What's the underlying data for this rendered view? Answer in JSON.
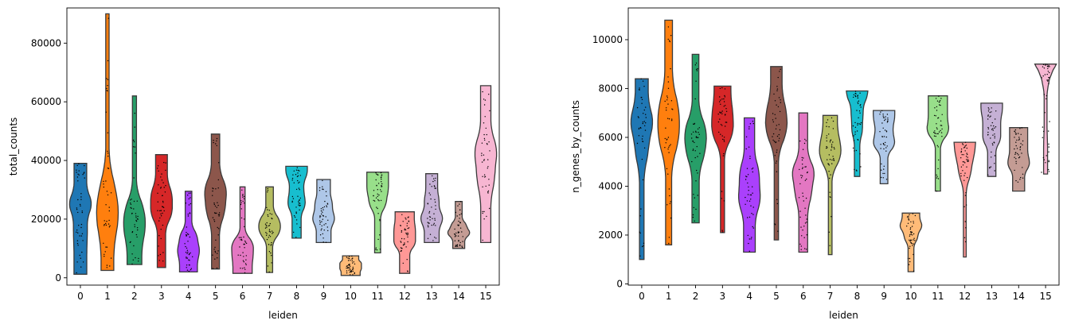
{
  "chart_data": [
    {
      "type": "violin",
      "xlabel": "leiden",
      "ylabel": "total_counts",
      "categories": [
        "0",
        "1",
        "2",
        "3",
        "4",
        "5",
        "6",
        "7",
        "8",
        "9",
        "10",
        "11",
        "12",
        "13",
        "14",
        "15"
      ],
      "ylim": [
        -2500,
        92000
      ],
      "yticks": [
        0,
        20000,
        40000,
        60000,
        80000
      ],
      "grid": false,
      "series": [
        {
          "category": "0",
          "min": 1200,
          "q1": 12000,
          "median": 22000,
          "q3": 28000,
          "max": 39000
        },
        {
          "category": "1",
          "min": 2500,
          "q1": 17000,
          "median": 24000,
          "q3": 34000,
          "max": 90000
        },
        {
          "category": "2",
          "min": 4500,
          "q1": 14000,
          "median": 20000,
          "q3": 27000,
          "max": 62000
        },
        {
          "category": "3",
          "min": 3500,
          "q1": 19000,
          "median": 25000,
          "q3": 31000,
          "max": 42000
        },
        {
          "category": "4",
          "min": 2000,
          "q1": 7000,
          "median": 11000,
          "q3": 16000,
          "max": 29500
        },
        {
          "category": "5",
          "min": 3000,
          "q1": 20000,
          "median": 27000,
          "q3": 33000,
          "max": 49000
        },
        {
          "category": "6",
          "min": 1500,
          "q1": 6000,
          "median": 10000,
          "q3": 14000,
          "max": 31000
        },
        {
          "category": "7",
          "min": 1800,
          "q1": 14000,
          "median": 17500,
          "q3": 21000,
          "max": 31000
        },
        {
          "category": "8",
          "min": 13500,
          "q1": 23000,
          "median": 28000,
          "q3": 34000,
          "max": 38000
        },
        {
          "category": "9",
          "min": 12000,
          "q1": 18000,
          "median": 22000,
          "q3": 27000,
          "max": 33500
        },
        {
          "category": "10",
          "min": 800,
          "q1": 2500,
          "median": 4000,
          "q3": 5500,
          "max": 7500
        },
        {
          "category": "11",
          "min": 8500,
          "q1": 23000,
          "median": 28000,
          "q3": 32000,
          "max": 36000
        },
        {
          "category": "12",
          "min": 1500,
          "q1": 10000,
          "median": 14000,
          "q3": 18000,
          "max": 22500
        },
        {
          "category": "13",
          "min": 12000,
          "q1": 18000,
          "median": 22000,
          "q3": 28000,
          "max": 35500
        },
        {
          "category": "14",
          "min": 10000,
          "q1": 14000,
          "median": 16000,
          "q3": 19000,
          "max": 26000
        },
        {
          "category": "15",
          "min": 12000,
          "q1": 30000,
          "median": 40000,
          "q3": 48000,
          "max": 65500
        }
      ]
    },
    {
      "type": "violin",
      "xlabel": "leiden",
      "ylabel": "n_genes_by_counts",
      "categories": [
        "0",
        "1",
        "2",
        "3",
        "4",
        "5",
        "6",
        "7",
        "8",
        "9",
        "10",
        "11",
        "12",
        "13",
        "14",
        "15"
      ],
      "ylim": [
        -50,
        11300
      ],
      "yticks": [
        0,
        2000,
        4000,
        6000,
        8000,
        10000
      ],
      "grid": false,
      "series": [
        {
          "category": "0",
          "min": 1000,
          "q1": 5000,
          "median": 6300,
          "q3": 7000,
          "max": 8400
        },
        {
          "category": "1",
          "min": 1600,
          "q1": 5500,
          "median": 6600,
          "q3": 7700,
          "max": 10800
        },
        {
          "category": "2",
          "min": 2500,
          "q1": 5000,
          "median": 5900,
          "q3": 6700,
          "max": 9400
        },
        {
          "category": "3",
          "min": 2100,
          "q1": 5800,
          "median": 6500,
          "q3": 7200,
          "max": 8100
        },
        {
          "category": "4",
          "min": 1300,
          "q1": 3000,
          "median": 3900,
          "q3": 4900,
          "max": 6800
        },
        {
          "category": "5",
          "min": 1800,
          "q1": 5800,
          "median": 6600,
          "q3": 7400,
          "max": 8900
        },
        {
          "category": "6",
          "min": 1300,
          "q1": 3300,
          "median": 4300,
          "q3": 5000,
          "max": 7000
        },
        {
          "category": "7",
          "min": 1200,
          "q1": 4800,
          "median": 5400,
          "q3": 6000,
          "max": 6900
        },
        {
          "category": "8",
          "min": 4400,
          "q1": 6000,
          "median": 6800,
          "q3": 7500,
          "max": 7900
        },
        {
          "category": "9",
          "min": 4100,
          "q1": 5500,
          "median": 6000,
          "q3": 6600,
          "max": 7100
        },
        {
          "category": "10",
          "min": 500,
          "q1": 1700,
          "median": 2200,
          "q3": 2500,
          "max": 2900
        },
        {
          "category": "11",
          "min": 3800,
          "q1": 6000,
          "median": 6500,
          "q3": 7100,
          "max": 7700
        },
        {
          "category": "12",
          "min": 1100,
          "q1": 4200,
          "median": 4900,
          "q3": 5400,
          "max": 5800
        },
        {
          "category": "13",
          "min": 4400,
          "q1": 5700,
          "median": 6300,
          "q3": 6900,
          "max": 7400
        },
        {
          "category": "14",
          "min": 3800,
          "q1": 4700,
          "median": 5200,
          "q3": 5800,
          "max": 6400
        },
        {
          "category": "15",
          "min": 4500,
          "q1": 6000,
          "median": 8100,
          "q3": 8800,
          "max": 9000
        }
      ]
    }
  ],
  "colors": [
    "#1f77b4",
    "#ff7f0e",
    "#279e68",
    "#d62728",
    "#aa40fc",
    "#8c564b",
    "#e377c2",
    "#b5bd61",
    "#17becf",
    "#aec7e8",
    "#ffbb78",
    "#98df8a",
    "#ff9896",
    "#c5b0d5",
    "#c49c94",
    "#f7b6d2"
  ]
}
